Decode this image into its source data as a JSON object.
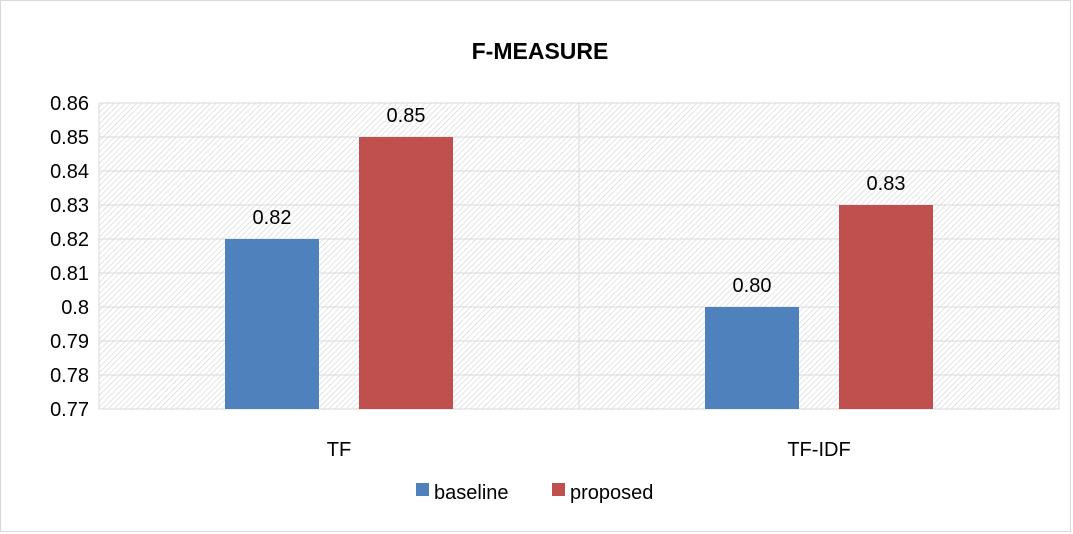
{
  "chart_data": {
    "type": "bar",
    "title": "F-MEASURE",
    "categories": [
      "TF",
      "TF-IDF"
    ],
    "series": [
      {
        "name": "baseline",
        "values": [
          0.82,
          0.8
        ],
        "labels": [
          "0.82",
          "0.80"
        ],
        "color": "#4f81bd"
      },
      {
        "name": "proposed",
        "values": [
          0.85,
          0.83
        ],
        "labels": [
          "0.85",
          "0.83"
        ],
        "color": "#c0504d"
      }
    ],
    "ylim": [
      0.77,
      0.86
    ],
    "yticks": [
      {
        "value": 0.86,
        "label": "0.86"
      },
      {
        "value": 0.85,
        "label": "0.85"
      },
      {
        "value": 0.84,
        "label": "0.84"
      },
      {
        "value": 0.83,
        "label": "0.83"
      },
      {
        "value": 0.82,
        "label": "0.82"
      },
      {
        "value": 0.81,
        "label": "0.81"
      },
      {
        "value": 0.8,
        "label": "0.8"
      },
      {
        "value": 0.79,
        "label": "0.79"
      },
      {
        "value": 0.78,
        "label": "0.78"
      },
      {
        "value": 0.77,
        "label": "0.77"
      }
    ],
    "grid": true,
    "legend": "bottom",
    "xlabel": "",
    "ylabel": ""
  }
}
